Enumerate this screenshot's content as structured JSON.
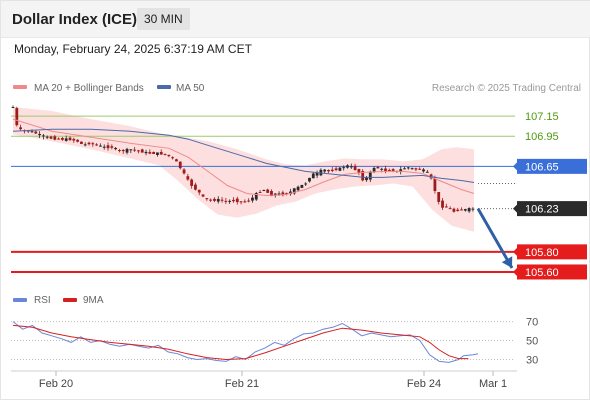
{
  "header": {
    "title": "Dollar Index (ICE)",
    "timeframe": "30 MIN",
    "datetime": "Monday, February 24, 2025 6:37:19 AM CET"
  },
  "legend": {
    "bollinger": "MA 20 + Bollinger Bands",
    "ma50": "MA 50",
    "rsi": "RSI",
    "rsi_ma": "9MA"
  },
  "credit": "Research © 2025 Trading Central",
  "colors": {
    "up_candle": "#2a2a2a",
    "down_candle": "#9e1b1b",
    "bollinger_fill": "#fdd9d9",
    "ma20": "#f08a8a",
    "ma50": "#4a6aa8",
    "resistance": "#9ccc6a",
    "resistance_text": "#4f9a0e",
    "pivot": "#3a6fd8",
    "support": "#e41c1c",
    "last_price_bg": "#2b2b2b",
    "rsi": "#6a86d8",
    "rsi_ma": "#d62020"
  },
  "chart_data": [
    {
      "type": "candlestick",
      "title": "Dollar Index (ICE) 30 MIN",
      "x_ticks": [
        "Feb 20",
        "Feb 21",
        "Feb 24",
        "Mar 1"
      ],
      "ylim": [
        105.55,
        107.3
      ],
      "levels": [
        {
          "role": "resistance",
          "value": 107.15,
          "label": "107.15"
        },
        {
          "role": "resistance",
          "value": 106.95,
          "label": "106.95"
        },
        {
          "role": "pivot",
          "value": 106.65,
          "label": "106.65"
        },
        {
          "role": "last",
          "value": 106.23,
          "label": "106.23"
        },
        {
          "role": "support",
          "value": 105.8,
          "label": "105.80"
        },
        {
          "role": "support",
          "value": 105.6,
          "label": "105.60"
        }
      ],
      "price_path": [
        [
          0,
          107.24
        ],
        [
          4,
          107.05
        ],
        [
          9,
          107.0
        ],
        [
          18,
          107.0
        ],
        [
          28,
          106.96
        ],
        [
          38,
          106.93
        ],
        [
          48,
          106.92
        ],
        [
          58,
          106.92
        ],
        [
          66,
          106.9
        ],
        [
          72,
          106.86
        ],
        [
          78,
          106.88
        ],
        [
          86,
          106.86
        ],
        [
          94,
          106.84
        ],
        [
          102,
          106.84
        ],
        [
          110,
          106.8
        ],
        [
          120,
          106.82
        ],
        [
          130,
          106.8
        ],
        [
          140,
          106.78
        ],
        [
          150,
          106.78
        ],
        [
          158,
          106.76
        ],
        [
          165,
          106.73
        ],
        [
          170,
          106.66
        ],
        [
          175,
          106.58
        ],
        [
          180,
          106.5
        ],
        [
          185,
          106.44
        ],
        [
          190,
          106.4
        ],
        [
          196,
          106.33
        ],
        [
          203,
          106.31
        ],
        [
          210,
          106.32
        ],
        [
          218,
          106.3
        ],
        [
          226,
          106.31
        ],
        [
          234,
          106.3
        ],
        [
          240,
          106.3
        ],
        [
          246,
          106.34
        ],
        [
          252,
          106.4
        ],
        [
          258,
          106.42
        ],
        [
          264,
          106.36
        ],
        [
          270,
          106.38
        ],
        [
          276,
          106.37
        ],
        [
          282,
          106.38
        ],
        [
          288,
          106.42
        ],
        [
          294,
          106.45
        ],
        [
          300,
          106.48
        ],
        [
          306,
          106.57
        ],
        [
          312,
          106.58
        ],
        [
          318,
          106.62
        ],
        [
          324,
          106.6
        ],
        [
          330,
          106.62
        ],
        [
          336,
          106.63
        ],
        [
          342,
          106.66
        ],
        [
          348,
          106.64
        ],
        [
          354,
          106.6
        ],
        [
          360,
          106.5
        ],
        [
          364,
          106.55
        ],
        [
          370,
          106.64
        ],
        [
          376,
          106.63
        ],
        [
          382,
          106.6
        ],
        [
          388,
          106.61
        ],
        [
          394,
          106.6
        ],
        [
          400,
          106.63
        ],
        [
          406,
          106.64
        ],
        [
          412,
          106.62
        ],
        [
          418,
          106.62
        ],
        [
          424,
          106.6
        ],
        [
          428,
          106.55
        ],
        [
          432,
          106.44
        ],
        [
          436,
          106.3
        ],
        [
          440,
          106.25
        ],
        [
          446,
          106.24
        ],
        [
          452,
          106.2
        ],
        [
          458,
          106.22
        ],
        [
          464,
          106.22
        ],
        [
          470,
          106.23
        ],
        [
          473,
          106.23
        ]
      ],
      "ma20_path": [
        [
          0,
          107.12
        ],
        [
          40,
          107.0
        ],
        [
          80,
          106.94
        ],
        [
          120,
          106.88
        ],
        [
          160,
          106.83
        ],
        [
          180,
          106.74
        ],
        [
          200,
          106.6
        ],
        [
          220,
          106.46
        ],
        [
          240,
          106.38
        ],
        [
          260,
          106.36
        ],
        [
          280,
          106.37
        ],
        [
          300,
          106.42
        ],
        [
          320,
          106.5
        ],
        [
          340,
          106.57
        ],
        [
          360,
          106.59
        ],
        [
          380,
          106.6
        ],
        [
          400,
          106.6
        ],
        [
          420,
          106.58
        ],
        [
          440,
          106.5
        ],
        [
          460,
          106.42
        ],
        [
          473,
          106.38
        ]
      ],
      "ma50_path": [
        [
          0,
          107.0
        ],
        [
          40,
          107.02
        ],
        [
          80,
          107.02
        ],
        [
          120,
          107.0
        ],
        [
          160,
          106.96
        ],
        [
          180,
          106.92
        ],
        [
          200,
          106.86
        ],
        [
          220,
          106.8
        ],
        [
          240,
          106.74
        ],
        [
          260,
          106.68
        ],
        [
          280,
          106.64
        ],
        [
          300,
          106.6
        ],
        [
          320,
          106.58
        ],
        [
          340,
          106.56
        ],
        [
          360,
          106.54
        ],
        [
          380,
          106.54
        ],
        [
          400,
          106.55
        ],
        [
          420,
          106.56
        ],
        [
          440,
          106.53
        ],
        [
          460,
          106.51
        ],
        [
          473,
          106.49
        ]
      ],
      "bollinger_upper": [
        [
          0,
          107.24
        ],
        [
          40,
          107.2
        ],
        [
          80,
          107.12
        ],
        [
          120,
          107.05
        ],
        [
          150,
          106.98
        ],
        [
          170,
          106.95
        ],
        [
          200,
          106.9
        ],
        [
          230,
          106.82
        ],
        [
          260,
          106.72
        ],
        [
          280,
          106.67
        ],
        [
          300,
          106.66
        ],
        [
          320,
          106.7
        ],
        [
          340,
          106.73
        ],
        [
          360,
          106.72
        ],
        [
          380,
          106.72
        ],
        [
          400,
          106.7
        ],
        [
          420,
          106.72
        ],
        [
          440,
          106.82
        ],
        [
          455,
          106.84
        ],
        [
          473,
          106.82
        ]
      ],
      "bollinger_lower": [
        [
          0,
          106.97
        ],
        [
          40,
          106.9
        ],
        [
          80,
          106.82
        ],
        [
          120,
          106.73
        ],
        [
          150,
          106.66
        ],
        [
          170,
          106.5
        ],
        [
          190,
          106.32
        ],
        [
          210,
          106.17
        ],
        [
          230,
          106.14
        ],
        [
          250,
          106.18
        ],
        [
          270,
          106.26
        ],
        [
          290,
          106.3
        ],
        [
          310,
          106.38
        ],
        [
          330,
          106.42
        ],
        [
          350,
          106.45
        ],
        [
          370,
          106.46
        ],
        [
          390,
          106.48
        ],
        [
          410,
          106.45
        ],
        [
          430,
          106.22
        ],
        [
          450,
          106.06
        ],
        [
          473,
          106.0
        ]
      ],
      "projection": {
        "from": [
          473,
          106.23
        ],
        "to": [
          511,
          105.64
        ]
      }
    },
    {
      "type": "line",
      "title": "RSI",
      "yticks": [
        70,
        50,
        30
      ],
      "ylim": [
        20,
        78
      ],
      "series": [
        {
          "name": "RSI",
          "color": "#6a86d8",
          "points": [
            [
              0,
              70
            ],
            [
              10,
              62
            ],
            [
              20,
              66
            ],
            [
              30,
              58
            ],
            [
              40,
              55
            ],
            [
              50,
              52
            ],
            [
              60,
              48
            ],
            [
              70,
              54
            ],
            [
              80,
              48
            ],
            [
              90,
              50
            ],
            [
              100,
              46
            ],
            [
              110,
              44
            ],
            [
              120,
              46
            ],
            [
              130,
              44
            ],
            [
              140,
              42
            ],
            [
              150,
              45
            ],
            [
              160,
              38
            ],
            [
              170,
              36
            ],
            [
              180,
              32
            ],
            [
              190,
              30
            ],
            [
              200,
              31
            ],
            [
              210,
              29
            ],
            [
              220,
              28
            ],
            [
              230,
              33
            ],
            [
              240,
              30
            ],
            [
              250,
              38
            ],
            [
              260,
              42
            ],
            [
              270,
              48
            ],
            [
              280,
              45
            ],
            [
              290,
              52
            ],
            [
              300,
              57
            ],
            [
              310,
              58
            ],
            [
              320,
              62
            ],
            [
              330,
              64
            ],
            [
              340,
              68
            ],
            [
              350,
              62
            ],
            [
              360,
              55
            ],
            [
              370,
              58
            ],
            [
              380,
              56
            ],
            [
              390,
              54
            ],
            [
              400,
              55
            ],
            [
              410,
              56
            ],
            [
              420,
              50
            ],
            [
              430,
              35
            ],
            [
              440,
              28
            ],
            [
              450,
              27
            ],
            [
              460,
              30
            ],
            [
              465,
              34
            ],
            [
              475,
              35
            ],
            [
              480,
              36
            ]
          ]
        },
        {
          "name": "9MA",
          "color": "#d62020",
          "points": [
            [
              0,
              66
            ],
            [
              20,
              64
            ],
            [
              40,
              58
            ],
            [
              60,
              54
            ],
            [
              80,
              51
            ],
            [
              100,
              48
            ],
            [
              120,
              46
            ],
            [
              140,
              44
            ],
            [
              160,
              41
            ],
            [
              180,
              36
            ],
            [
              200,
              32
            ],
            [
              220,
              30
            ],
            [
              240,
              31
            ],
            [
              260,
              37
            ],
            [
              280,
              44
            ],
            [
              300,
              51
            ],
            [
              320,
              58
            ],
            [
              340,
              63
            ],
            [
              360,
              61
            ],
            [
              380,
              58
            ],
            [
              400,
              56
            ],
            [
              420,
              54
            ],
            [
              430,
              48
            ],
            [
              440,
              40
            ],
            [
              450,
              34
            ],
            [
              460,
              31
            ],
            [
              470,
              31
            ]
          ]
        }
      ]
    }
  ]
}
